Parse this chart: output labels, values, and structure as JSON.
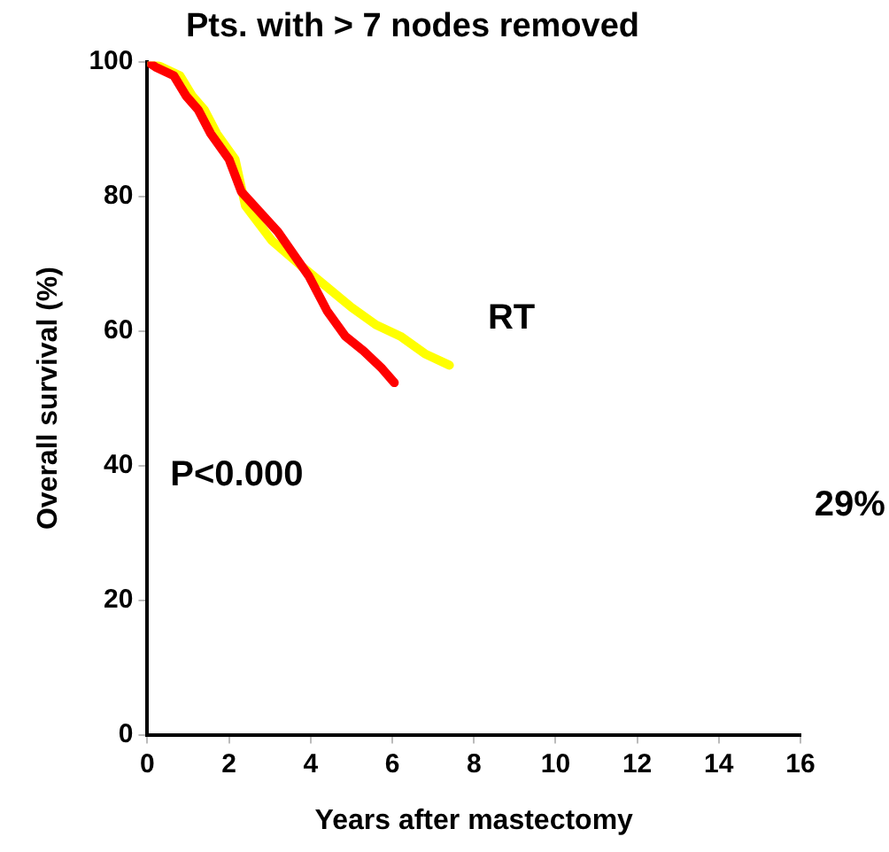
{
  "chart_data": {
    "type": "line",
    "title": "Pts. with > 7 nodes removed",
    "xlabel": "Years after mastectomy",
    "ylabel": "Overall survival (%)",
    "xlim": [
      0,
      16
    ],
    "xticks": [
      0,
      2,
      4,
      6,
      8,
      10,
      12,
      14,
      16
    ],
    "ylim": [
      0,
      100
    ],
    "yticks": [
      0,
      20,
      40,
      60,
      80,
      100
    ],
    "grid": false,
    "legend": false,
    "marker": "none",
    "line_style": "solid",
    "series": [
      {
        "name": "RT",
        "color": "#ffff00",
        "x": [
          0,
          0.35,
          0.8,
          1.1,
          1.4,
          1.7,
          2.15,
          2.4,
          3.05,
          3.8,
          4.4,
          5.0,
          5.6,
          6.2,
          6.8,
          7.4
        ],
        "values": [
          100,
          99.2,
          97.9,
          94.9,
          92.8,
          89.3,
          85.5,
          78.6,
          73.4,
          69.5,
          66.5,
          63.5,
          60.9,
          59.2,
          56.6,
          54.9
        ]
      },
      {
        "color": "#ff0000",
        "x": [
          0,
          0.2,
          0.65,
          0.95,
          1.25,
          1.55,
          2.0,
          2.3,
          2.75,
          3.2,
          3.65,
          3.95,
          4.4,
          4.85,
          5.3,
          5.75,
          6.05
        ],
        "values": [
          100,
          99.2,
          97.9,
          94.9,
          92.8,
          89.3,
          85.5,
          80.7,
          77.7,
          74.7,
          70.8,
          68.2,
          63.0,
          59.2,
          57.0,
          54.4,
          52.3
        ]
      }
    ],
    "annotations": [
      "P<0.000",
      "29%"
    ]
  }
}
